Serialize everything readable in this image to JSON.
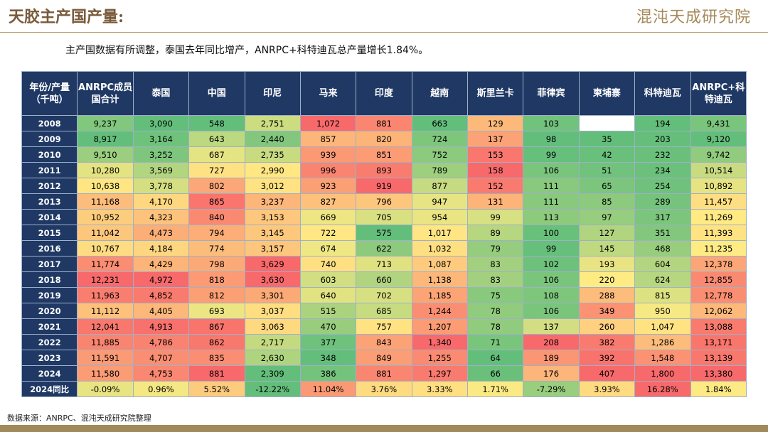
{
  "header": {
    "title": "天胶主产国产量:",
    "logo": "混沌天成研究院"
  },
  "subtitle": "主产国数据有所调整，泰国去年同比增产，ANRPC+科特迪瓦总产量增长1.84%。",
  "table": {
    "columns": [
      "年份/产量（千吨）",
      "ANRPC成员国合计",
      "泰国",
      "中国",
      "印尼",
      "马来",
      "印度",
      "越南",
      "斯里兰卡",
      "菲律宾",
      "柬埔寨",
      "科特迪瓦",
      "ANRPC+科特迪瓦"
    ],
    "rows": [
      [
        "2008",
        "9,237",
        "3,090",
        "548",
        "2,751",
        "1,072",
        "881",
        "663",
        "129",
        "103",
        null,
        "194",
        "9,431"
      ],
      [
        "2009",
        "8,917",
        "3,164",
        "643",
        "2,440",
        "857",
        "820",
        "724",
        "137",
        "98",
        "35",
        "203",
        "9,120"
      ],
      [
        "2010",
        "9,510",
        "3,252",
        "687",
        "2,735",
        "939",
        "851",
        "752",
        "153",
        "99",
        "42",
        "232",
        "9,742"
      ],
      [
        "2011",
        "10,280",
        "3,569",
        "727",
        "2,990",
        "996",
        "893",
        "789",
        "158",
        "106",
        "51",
        "234",
        "10,514"
      ],
      [
        "2012",
        "10,638",
        "3,778",
        "802",
        "3,012",
        "923",
        "919",
        "877",
        "152",
        "111",
        "65",
        "254",
        "10,892"
      ],
      [
        "2013",
        "11,168",
        "4,170",
        "865",
        "3,237",
        "827",
        "796",
        "947",
        "131",
        "111",
        "85",
        "289",
        "11,457"
      ],
      [
        "2014",
        "10,952",
        "4,323",
        "840",
        "3,153",
        "669",
        "705",
        "954",
        "99",
        "113",
        "97",
        "317",
        "11,269"
      ],
      [
        "2015",
        "11,042",
        "4,473",
        "794",
        "3,145",
        "722",
        "575",
        "1,017",
        "89",
        "100",
        "127",
        "351",
        "11,393"
      ],
      [
        "2016",
        "10,767",
        "4,184",
        "774",
        "3,157",
        "674",
        "622",
        "1,032",
        "79",
        "99",
        "145",
        "468",
        "11,235"
      ],
      [
        "2017",
        "11,774",
        "4,429",
        "798",
        "3,629",
        "740",
        "713",
        "1,087",
        "83",
        "102",
        "193",
        "604",
        "12,378"
      ],
      [
        "2018",
        "12,231",
        "4,972",
        "818",
        "3,630",
        "603",
        "660",
        "1,138",
        "83",
        "106",
        "220",
        "624",
        "12,855"
      ],
      [
        "2019",
        "11,963",
        "4,852",
        "812",
        "3,301",
        "640",
        "702",
        "1,185",
        "75",
        "108",
        "288",
        "815",
        "12,778"
      ],
      [
        "2020",
        "11,112",
        "4,405",
        "693",
        "3,037",
        "515",
        "685",
        "1,244",
        "78",
        "106",
        "349",
        "950",
        "12,062"
      ],
      [
        "2021",
        "12,041",
        "4,913",
        "867",
        "3,063",
        "470",
        "757",
        "1,207",
        "78",
        "137",
        "260",
        "1,047",
        "13,088"
      ],
      [
        "2022",
        "11,885",
        "4,786",
        "862",
        "2,717",
        "377",
        "843",
        "1,340",
        "71",
        "208",
        "382",
        "1,286",
        "13,171"
      ],
      [
        "2023",
        "11,591",
        "4,707",
        "835",
        "2,630",
        "348",
        "849",
        "1,255",
        "64",
        "189",
        "392",
        "1,548",
        "13,139"
      ],
      [
        "2024",
        "11,580",
        "4,753",
        "881",
        "2,309",
        "386",
        "881",
        "1,297",
        "66",
        "176",
        "407",
        "1,800",
        "13,380"
      ],
      [
        "2024同比",
        "-0.09%",
        "0.96%",
        "5.52%",
        "-12.22%",
        "11.04%",
        "3.76%",
        "3.33%",
        "1.71%",
        "-7.29%",
        "3.93%",
        "16.28%",
        "1.84%"
      ]
    ]
  },
  "source": "数据来源：ANRPC、混沌天成研究院整理"
}
